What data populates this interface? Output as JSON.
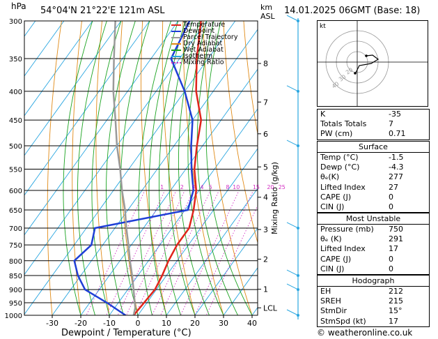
{
  "header": {
    "left_unit": "hPa",
    "location": "54°04'N  21°22'E  121m  ASL",
    "km_label": "km",
    "asl_label": "ASL",
    "datetime": "14.01.2025  06GMT  (Base: 18)"
  },
  "chart_data": {
    "type": "line",
    "title": "",
    "xlabel": "Dewpoint / Temperature (°C)",
    "ylabel": "hPa",
    "xlim": [
      -35,
      40
    ],
    "pressure_levels": [
      300,
      350,
      400,
      450,
      500,
      550,
      600,
      650,
      700,
      750,
      800,
      850,
      900,
      950,
      1000
    ],
    "x_ticks": [
      -30,
      -20,
      -10,
      0,
      10,
      20,
      30,
      40
    ],
    "km_ticks": [
      {
        "label": "8",
        "p": 357
      },
      {
        "label": "7",
        "p": 418
      },
      {
        "label": "6",
        "p": 476
      },
      {
        "label": "5",
        "p": 545
      },
      {
        "label": "4",
        "p": 617
      },
      {
        "label": "3",
        "p": 704
      },
      {
        "label": "2",
        "p": 795
      },
      {
        "label": "1",
        "p": 899
      },
      {
        "label": "LCL",
        "p": 970
      }
    ],
    "mixing_ratio_label": "Mixing Ratio (g/kg)",
    "mixing_ratio_values": [
      "1",
      "2",
      "3",
      "4",
      "5",
      "8",
      "10",
      "15",
      "20",
      "25"
    ],
    "series": [
      {
        "name": "Temperature",
        "color": "#e0241c",
        "points": [
          [
            300,
            -52
          ],
          [
            350,
            -44
          ],
          [
            400,
            -36
          ],
          [
            450,
            -27
          ],
          [
            500,
            -22
          ],
          [
            550,
            -17
          ],
          [
            600,
            -11
          ],
          [
            650,
            -7
          ],
          [
            700,
            -4
          ],
          [
            750,
            -4
          ],
          [
            800,
            -3
          ],
          [
            850,
            -1.5
          ],
          [
            900,
            -0.5
          ],
          [
            950,
            -1
          ],
          [
            1000,
            -1.5
          ]
        ]
      },
      {
        "name": "Dewpoint",
        "color": "#1f3fd6",
        "points": [
          [
            300,
            -56
          ],
          [
            350,
            -53
          ],
          [
            400,
            -40
          ],
          [
            450,
            -30
          ],
          [
            500,
            -24
          ],
          [
            550,
            -18
          ],
          [
            600,
            -12
          ],
          [
            650,
            -9
          ],
          [
            700,
            -37
          ],
          [
            750,
            -34
          ],
          [
            800,
            -36
          ],
          [
            850,
            -31
          ],
          [
            900,
            -25
          ],
          [
            950,
            -14
          ],
          [
            1000,
            -4.3
          ]
        ]
      },
      {
        "name": "Parcel Trajectory",
        "color": "#9a9a9a",
        "points": [
          [
            1000,
            -1.5
          ],
          [
            970,
            -2.8
          ],
          [
            900,
            -8
          ],
          [
            850,
            -12
          ],
          [
            800,
            -16.5
          ],
          [
            750,
            -21
          ],
          [
            700,
            -26
          ],
          [
            650,
            -31
          ],
          [
            600,
            -37
          ],
          [
            550,
            -43
          ],
          [
            500,
            -50
          ],
          [
            450,
            -57
          ],
          [
            400,
            -65
          ],
          [
            350,
            -73
          ],
          [
            300,
            -82
          ]
        ]
      }
    ],
    "legend": [
      {
        "label": "Temperature",
        "color": "#e0241c",
        "style": "solid"
      },
      {
        "label": "Dewpoint",
        "color": "#1f3fd6",
        "style": "solid"
      },
      {
        "label": "Parcel Trajectory",
        "color": "#9a9a9a",
        "style": "solid"
      },
      {
        "label": "Dry Adiabat",
        "color": "#e08a16",
        "style": "solid"
      },
      {
        "label": "Wet Adiabat",
        "color": "#1aa320",
        "style": "solid"
      },
      {
        "label": "Isotherm",
        "color": "#2aa6e0",
        "style": "solid"
      },
      {
        "label": "Mixing Ratio",
        "color": "#d22cc2",
        "style": "dotted"
      }
    ],
    "legend_position": "top-right"
  },
  "hodograph": {
    "label": "kt",
    "ring_labels": [
      "40",
      "30",
      "20"
    ]
  },
  "stats": {
    "basic": [
      {
        "label": "K",
        "value": "-35"
      },
      {
        "label": "Totals Totals",
        "value": "7"
      },
      {
        "label": "PW (cm)",
        "value": "0.71"
      }
    ],
    "surface_title": "Surface",
    "surface": [
      {
        "label": "Temp (°C)",
        "value": "-1.5"
      },
      {
        "label": "Dewp (°C)",
        "value": "-4.3"
      },
      {
        "label": "θₑ(K)",
        "value": "277"
      },
      {
        "label": "Lifted Index",
        "value": "27"
      },
      {
        "label": "CAPE (J)",
        "value": "0"
      },
      {
        "label": "CIN (J)",
        "value": "0"
      }
    ],
    "unstable_title": "Most Unstable",
    "unstable": [
      {
        "label": "Pressure (mb)",
        "value": "750"
      },
      {
        "label": "θₑ (K)",
        "value": "291"
      },
      {
        "label": "Lifted Index",
        "value": "17"
      },
      {
        "label": "CAPE (J)",
        "value": "0"
      },
      {
        "label": "CIN (J)",
        "value": "0"
      }
    ],
    "hodo_title": "Hodograph",
    "hodo": [
      {
        "label": "EH",
        "value": "212"
      },
      {
        "label": "SREH",
        "value": "215"
      },
      {
        "label": "StmDir",
        "value": "15°"
      },
      {
        "label": "StmSpd (kt)",
        "value": "17"
      }
    ]
  },
  "footer": {
    "copyright": "© weatheronline.co.uk"
  },
  "colors": {
    "temperature": "#e0241c",
    "dewpoint": "#1f3fd6",
    "parcel": "#9a9a9a",
    "dry_adiabat": "#e08a16",
    "wet_adiabat": "#1aa320",
    "isotherm": "#2aa6e0",
    "mixing_ratio": "#d22cc2",
    "wind_barb": "#2aa6e0"
  }
}
